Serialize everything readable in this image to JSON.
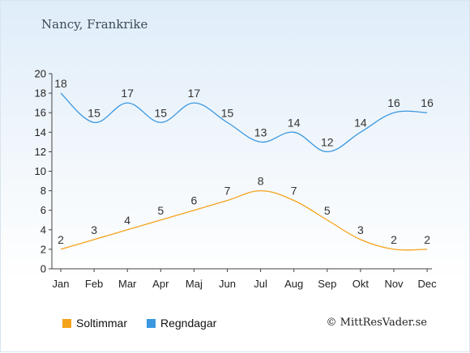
{
  "title": "Nancy, Frankrike",
  "credit": "© MittResVader.se",
  "chart_data": {
    "type": "line",
    "categories": [
      "Jan",
      "Feb",
      "Mar",
      "Apr",
      "Maj",
      "Jun",
      "Jul",
      "Aug",
      "Sep",
      "Okt",
      "Nov",
      "Dec"
    ],
    "series": [
      {
        "name": "Soltimmar",
        "color": "#f5a21b",
        "values": [
          2,
          3,
          4,
          5,
          6,
          7,
          8,
          7,
          5,
          3,
          2,
          2
        ]
      },
      {
        "name": "Regndagar",
        "color": "#3a98e0",
        "values": [
          18,
          15,
          17,
          15,
          17,
          15,
          13,
          14,
          12,
          14,
          16,
          16
        ]
      }
    ],
    "ylim": [
      0,
      20
    ],
    "yticks": [
      0,
      2,
      4,
      6,
      8,
      10,
      12,
      14,
      16,
      18,
      20
    ],
    "grid": false,
    "legend": "bottom-left"
  }
}
